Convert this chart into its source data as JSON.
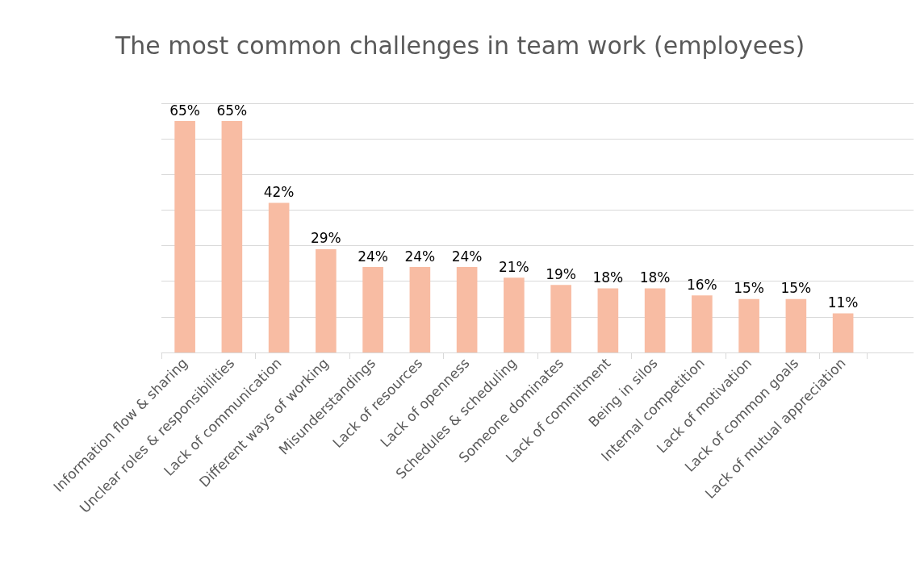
{
  "chart_data": {
    "type": "bar",
    "title": "The most common challenges in team work (employees)",
    "categories": [
      "Information flow & sharing",
      "Unclear roles & responsibilities",
      "Lack of communication",
      "Different ways of working",
      "Misunderstandings",
      "Lack of resources",
      "Lack of openness",
      "Schedules & scheduling",
      "Someone dominates",
      "Lack of commitment",
      "Being in silos",
      "Internal competition",
      "Lack of motivation",
      "Lack of common goals",
      "Lack of mutual appreciation",
      null
    ],
    "values": [
      65,
      65,
      42,
      29,
      24,
      24,
      24,
      21,
      19,
      18,
      18,
      16,
      15,
      15,
      11,
      null
    ],
    "value_labels": [
      "65%",
      "65%",
      "42%",
      "29%",
      "24%",
      "24%",
      "24%",
      "21%",
      "19%",
      "18%",
      "18%",
      "16%",
      "15%",
      "15%",
      "11%",
      null
    ],
    "color": "#f8bca3",
    "ylim": [
      0,
      70
    ],
    "yticks": [
      0,
      10,
      20,
      30,
      40,
      50,
      60,
      70
    ],
    "grid": "y",
    "tick_labels": "x"
  }
}
